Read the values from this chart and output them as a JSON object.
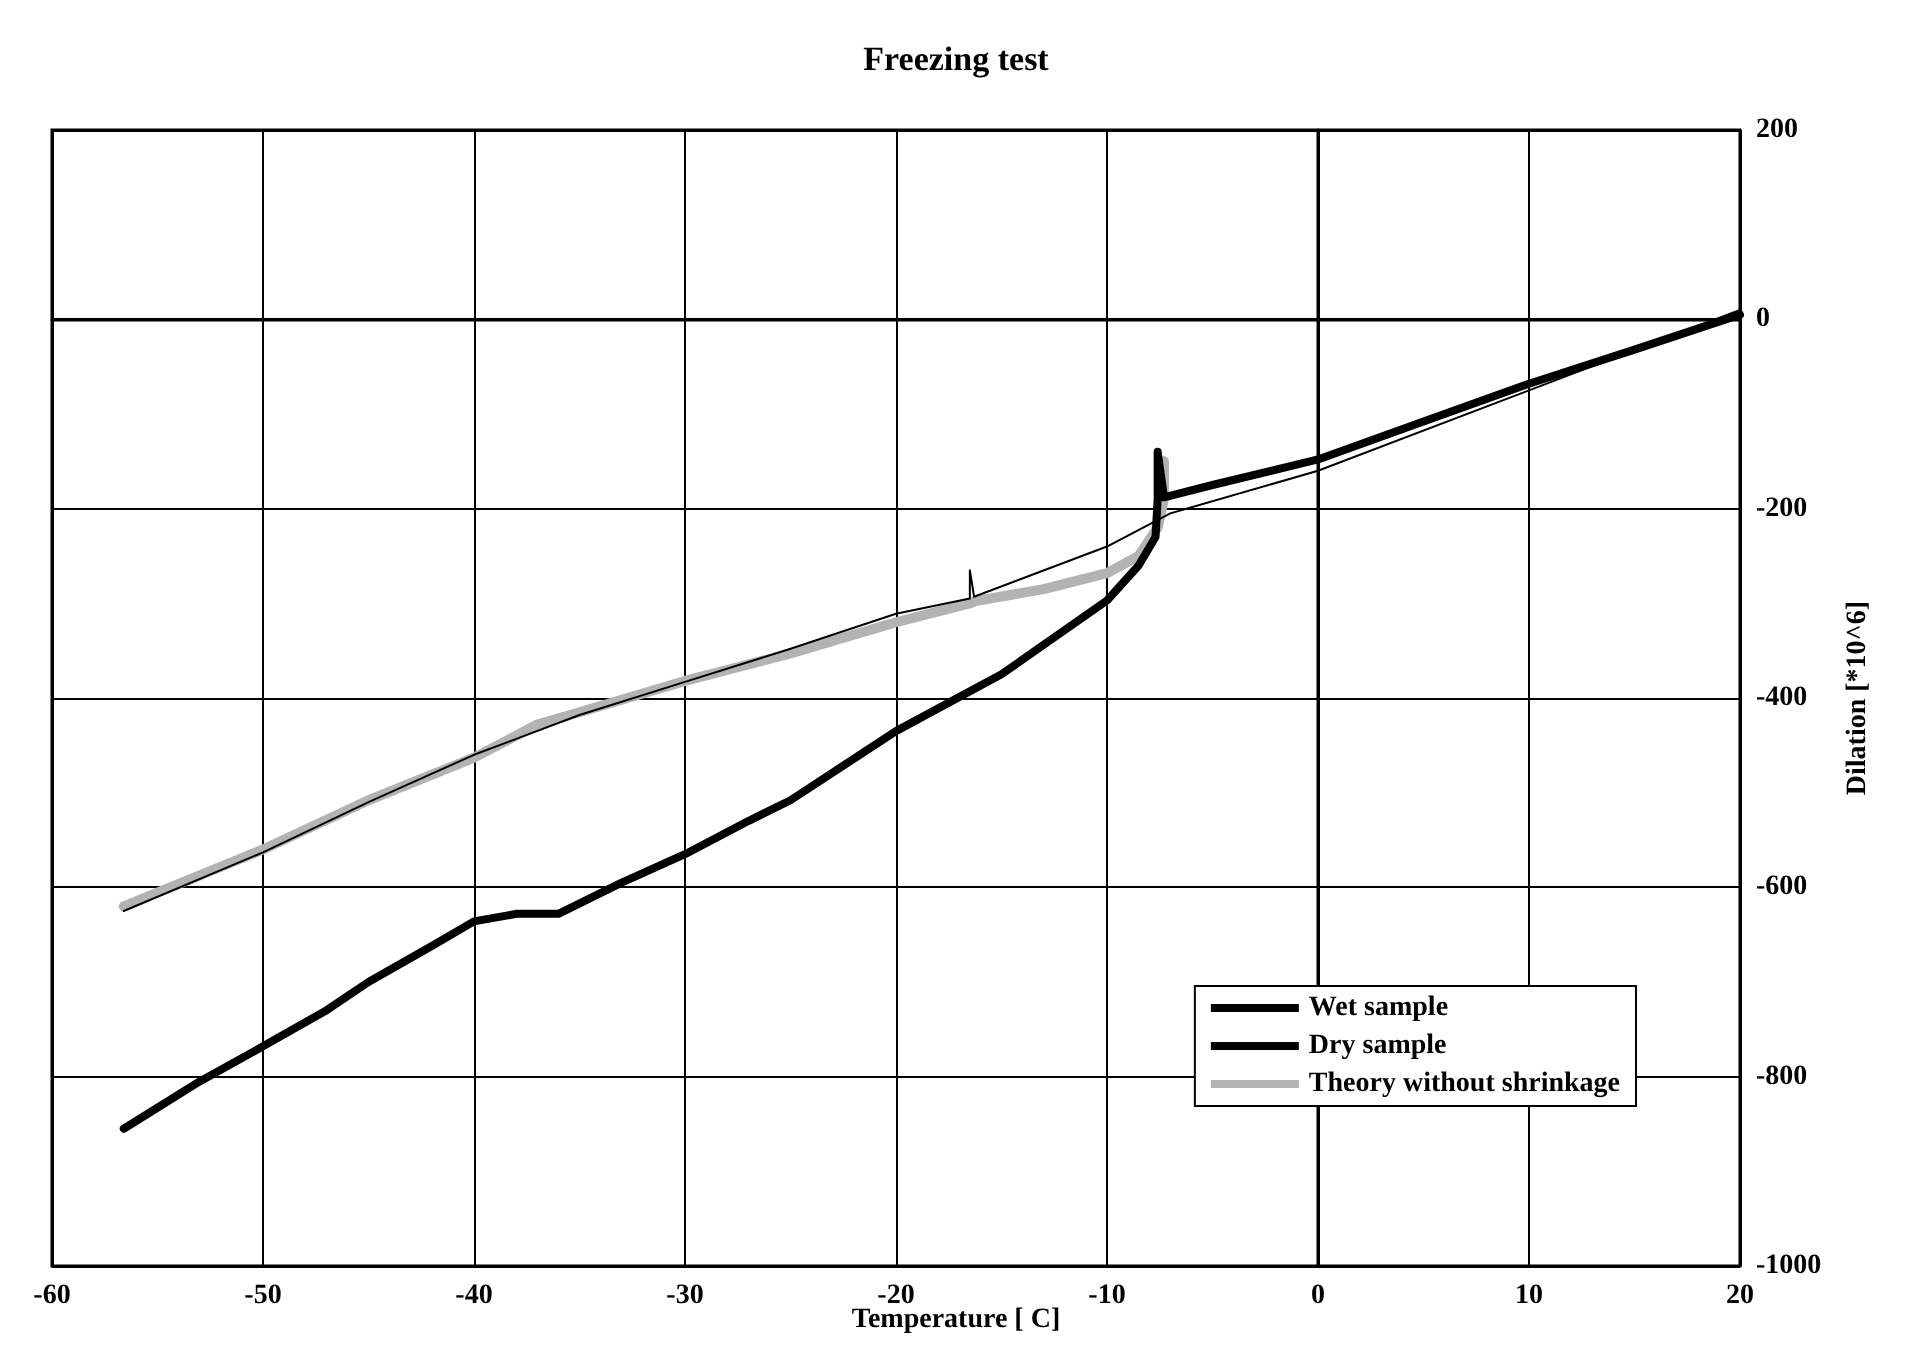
{
  "chart_data": {
    "type": "line",
    "title": "Freezing test",
    "xlabel": "Temperature [ C]",
    "ylabel": "Dilation [*10^6]",
    "xlim": [
      -60,
      20
    ],
    "xticks": [
      -60,
      -50,
      -40,
      -30,
      -20,
      -10,
      0,
      10,
      20
    ],
    "ylim": [
      -1000,
      200
    ],
    "yticks": [
      -1000,
      -800,
      -600,
      -400,
      -200,
      0,
      200
    ],
    "grid": true,
    "legend": "bottom right",
    "marker": "none",
    "line_style": "solid",
    "series": [
      {
        "name": "Wet sample",
        "color": "#000000",
        "x": [
          -56.6,
          -53,
          -50,
          -47,
          -45,
          -42,
          -40,
          -38,
          -36,
          -33,
          -30,
          -27,
          -25,
          -20,
          -15,
          -10,
          -8.5,
          -7.7,
          -7.6,
          -7.6,
          -7.3,
          -5,
          0,
          5,
          10,
          15,
          20
        ],
        "values": [
          -855,
          -805,
          -768,
          -730,
          -700,
          -662,
          -636,
          -628,
          -628,
          -595,
          -565,
          -530,
          -508,
          -435,
          -375,
          -297,
          -260,
          -230,
          -190,
          -140,
          -188,
          -175,
          -148,
          -108,
          -68,
          -32,
          5
        ]
      },
      {
        "name": "Dry sample",
        "color": "#000000",
        "x": [
          -56.6,
          -50,
          -45,
          -40,
          -35,
          -30,
          -25,
          -20,
          -16.5,
          -16.5,
          -16.3,
          -10,
          -7,
          0,
          10,
          20
        ],
        "values": [
          -625,
          -563,
          -510,
          -460,
          -418,
          -383,
          -348,
          -311,
          -295,
          -265,
          -293,
          -240,
          -205,
          -160,
          -75,
          10
        ]
      },
      {
        "name": "Theory without shrinkage",
        "color": "#b3b3b3",
        "x": [
          -56.6,
          -50,
          -45,
          -40,
          -37,
          -35,
          -30,
          -25,
          -20,
          -16.5,
          -16.3,
          -13,
          -10,
          -8.5,
          -7.6,
          -7.3,
          -7.3
        ],
        "values": [
          -620,
          -560,
          -508,
          -463,
          -428,
          -415,
          -382,
          -353,
          -320,
          -300,
          -298,
          -285,
          -268,
          -250,
          -220,
          -190,
          -150
        ]
      }
    ]
  }
}
